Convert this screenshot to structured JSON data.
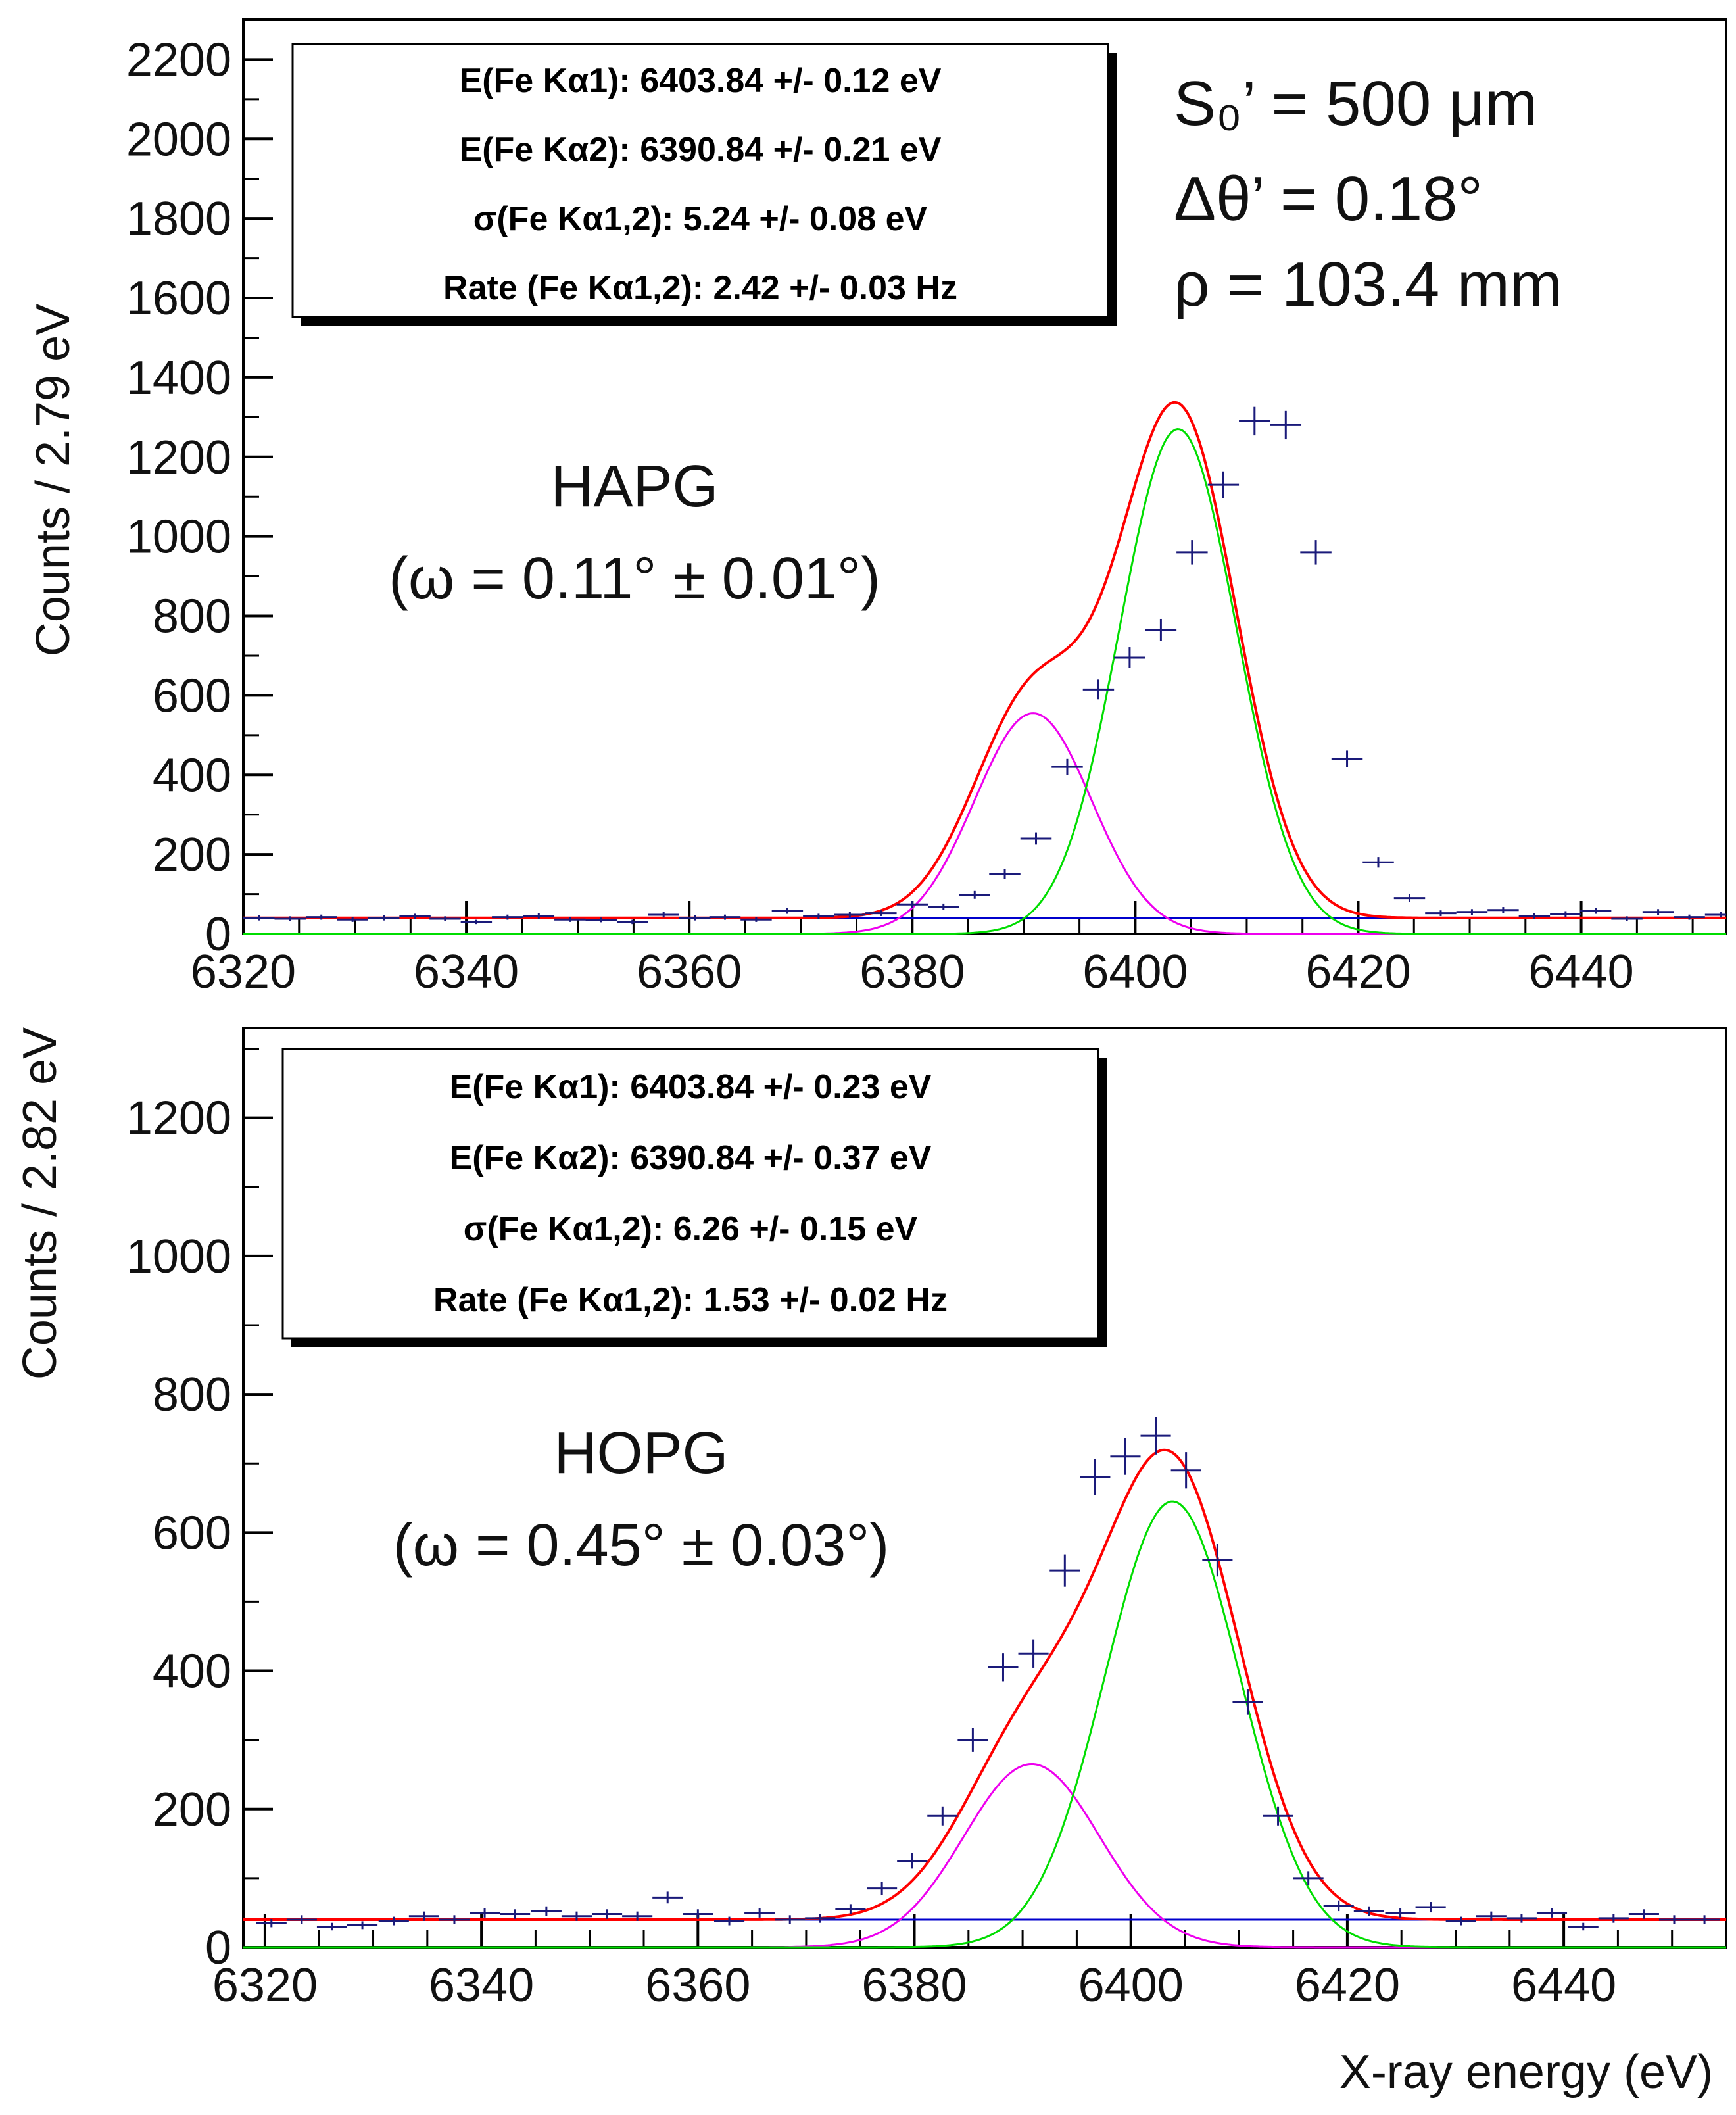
{
  "chart_data": [
    {
      "type": "line",
      "id": "hapg",
      "xlabel": "",
      "ylabel": "Counts / 2.79 eV",
      "xlim": [
        6320,
        6453
      ],
      "ylim": [
        0,
        2300
      ],
      "x_ticks": [
        "6320",
        "6340",
        "6360",
        "6380",
        "6400",
        "6420",
        "6440"
      ],
      "y_ticks": [
        "0",
        "200",
        "400",
        "600",
        "800",
        "1000",
        "1200",
        "1400",
        "1600",
        "1800",
        "2000",
        "2200"
      ],
      "crystal_label": "HAPG",
      "mosaicity_label": "(ω = 0.11° ± 0.01°)",
      "stats": [
        "E(Fe Kα1): 6403.84 +/- 0.12 eV",
        "E(Fe Kα2): 6390.84 +/- 0.21 eV",
        "σ(Fe Kα1,2): 5.24 +/- 0.08 eV",
        "Rate (Fe Kα1,2): 2.42 +/- 0.03 Hz"
      ],
      "params": [
        "S₀’ = 500 μm",
        "Δθ’ =  0.18°",
        "ρ =  103.4 mm"
      ],
      "fit": {
        "background": 40,
        "ka1_mean": 6403.84,
        "ka1_amp": 1270,
        "ka2_mean": 6390.84,
        "ka2_amp": 555,
        "sigma": 5.24
      },
      "series": [
        {
          "name": "data",
          "x": [
            6321.4,
            6324.2,
            6327.0,
            6329.8,
            6332.6,
            6335.4,
            6338.1,
            6340.9,
            6343.7,
            6346.5,
            6349.3,
            6352.1,
            6354.9,
            6357.7,
            6360.5,
            6363.2,
            6366.0,
            6368.8,
            6371.6,
            6374.4,
            6377.2,
            6380.0,
            6382.8,
            6385.6,
            6388.3,
            6391.1,
            6393.9,
            6396.7,
            6399.5,
            6402.3,
            6405.1,
            6407.9,
            6410.7,
            6413.5,
            6416.2,
            6419.0,
            6421.8,
            6424.6,
            6427.4,
            6430.2,
            6433.0,
            6435.8,
            6438.6,
            6441.3,
            6444.1,
            6446.9,
            6449.7,
            6452.5
          ],
          "y": [
            40,
            38,
            42,
            36,
            40,
            44,
            38,
            30,
            42,
            45,
            36,
            35,
            30,
            48,
            40,
            42,
            36,
            58,
            44,
            48,
            52,
            74,
            68,
            98,
            150,
            240,
            420,
            615,
            695,
            765,
            960,
            1130,
            1290,
            1280,
            960,
            440,
            180,
            90,
            52,
            55,
            60,
            45,
            50,
            58,
            38,
            55,
            42,
            48
          ]
        }
      ]
    },
    {
      "type": "line",
      "id": "hopg",
      "xlabel": "X-ray energy (eV)",
      "ylabel": "Counts / 2.82 eV",
      "xlim": [
        6318,
        6455
      ],
      "ylim": [
        0,
        1330
      ],
      "x_ticks": [
        "6320",
        "6340",
        "6360",
        "6380",
        "6400",
        "6420",
        "6440"
      ],
      "y_ticks": [
        "0",
        "200",
        "400",
        "600",
        "800",
        "1000",
        "1200"
      ],
      "crystal_label": "HOPG",
      "mosaicity_label": "(ω = 0.45° ± 0.03°)",
      "stats": [
        "E(Fe Kα1): 6403.84 +/- 0.23 eV",
        "E(Fe Kα2): 6390.84 +/- 0.37 eV",
        "σ(Fe Kα1,2): 6.26 +/- 0.15 eV",
        "Rate (Fe Kα1,2): 1.53 +/- 0.02 Hz"
      ],
      "params": [],
      "fit": {
        "background": 40,
        "ka1_mean": 6403.84,
        "ka1_amp": 645,
        "ka2_mean": 6390.84,
        "ka2_amp": 265,
        "sigma": 6.26
      },
      "series": [
        {
          "name": "data",
          "x": [
            6320.6,
            6323.4,
            6326.2,
            6329.0,
            6331.9,
            6334.7,
            6337.5,
            6340.3,
            6343.1,
            6346.0,
            6348.8,
            6351.6,
            6354.4,
            6357.2,
            6360.0,
            6362.9,
            6365.7,
            6368.5,
            6371.3,
            6374.1,
            6377.0,
            6379.8,
            6382.6,
            6385.4,
            6388.2,
            6391.0,
            6393.9,
            6396.7,
            6399.5,
            6402.3,
            6405.1,
            6408.0,
            6410.8,
            6413.6,
            6416.4,
            6419.2,
            6422.0,
            6424.9,
            6427.7,
            6430.5,
            6433.3,
            6436.1,
            6438.9,
            6441.8,
            6444.6,
            6447.4,
            6450.2,
            6453.0
          ],
          "y": [
            35,
            40,
            30,
            32,
            38,
            45,
            40,
            50,
            48,
            52,
            45,
            48,
            45,
            72,
            48,
            38,
            50,
            40,
            42,
            55,
            85,
            125,
            190,
            300,
            405,
            425,
            545,
            680,
            710,
            740,
            690,
            560,
            355,
            190,
            100,
            60,
            52,
            50,
            58,
            38,
            45,
            42,
            50,
            30,
            42,
            48,
            40,
            40
          ]
        }
      ]
    }
  ]
}
